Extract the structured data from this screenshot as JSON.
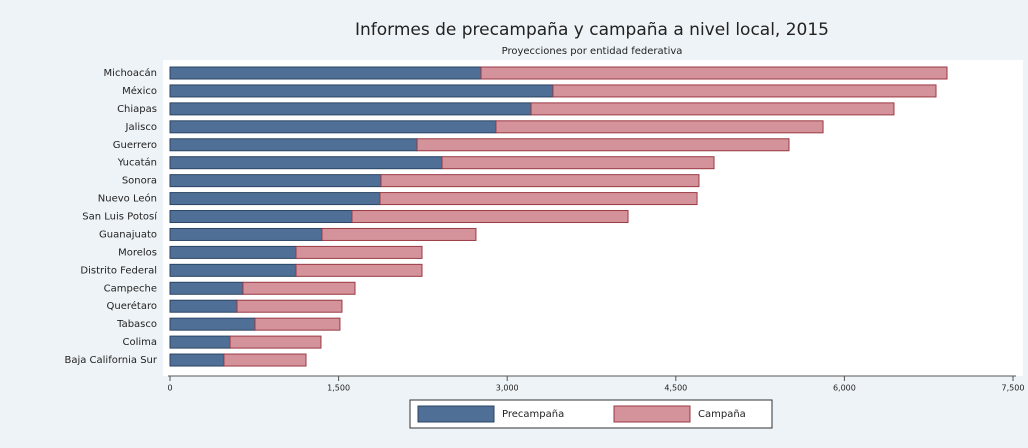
{
  "chart_data": {
    "type": "stacked_barh",
    "title": "Informes de precampaña y campaña a nivel local, 2015",
    "subtitle": "Proyecciones por entidad federativa",
    "categories": [
      "Michoacán",
      "México",
      "Chiapas",
      "Jalisco",
      "Guerrero",
      "Yucatán",
      "Sonora",
      "Nuevo León",
      "San Luis Potosí",
      "Guanajuato",
      "Morelos",
      "Distrito Federal",
      "Campeche",
      "Querétaro",
      "Tabasco",
      "Colima",
      "Baja California Sur"
    ],
    "series": [
      {
        "name": "Precampaña",
        "color": "#4f6f96",
        "edge": "#2b4564",
        "values": [
          2767,
          3407,
          3212,
          2900,
          2198,
          2420,
          1877,
          1868,
          1619,
          1352,
          1121,
          1121,
          649,
          596,
          756,
          534,
          480
        ]
      },
      {
        "name": "Campaña",
        "color": "#d4939a",
        "edge": "#9a3a44",
        "values": [
          4146,
          3408,
          3229,
          2910,
          3309,
          2420,
          2829,
          2821,
          2456,
          1370,
          1121,
          1121,
          997,
          934,
          756,
          809,
          730
        ]
      }
    ],
    "xlim": [
      0,
      7500
    ],
    "xticks": [
      0,
      {
        "value": 1500,
        "label": "1,500"
      },
      {
        "value": 3000,
        "label": "3,000"
      },
      {
        "value": 4500,
        "label": "4,500"
      },
      {
        "value": 6000,
        "label": "6,000"
      },
      {
        "value": 7500,
        "label": "7,500"
      }
    ],
    "legend": "bottom"
  }
}
